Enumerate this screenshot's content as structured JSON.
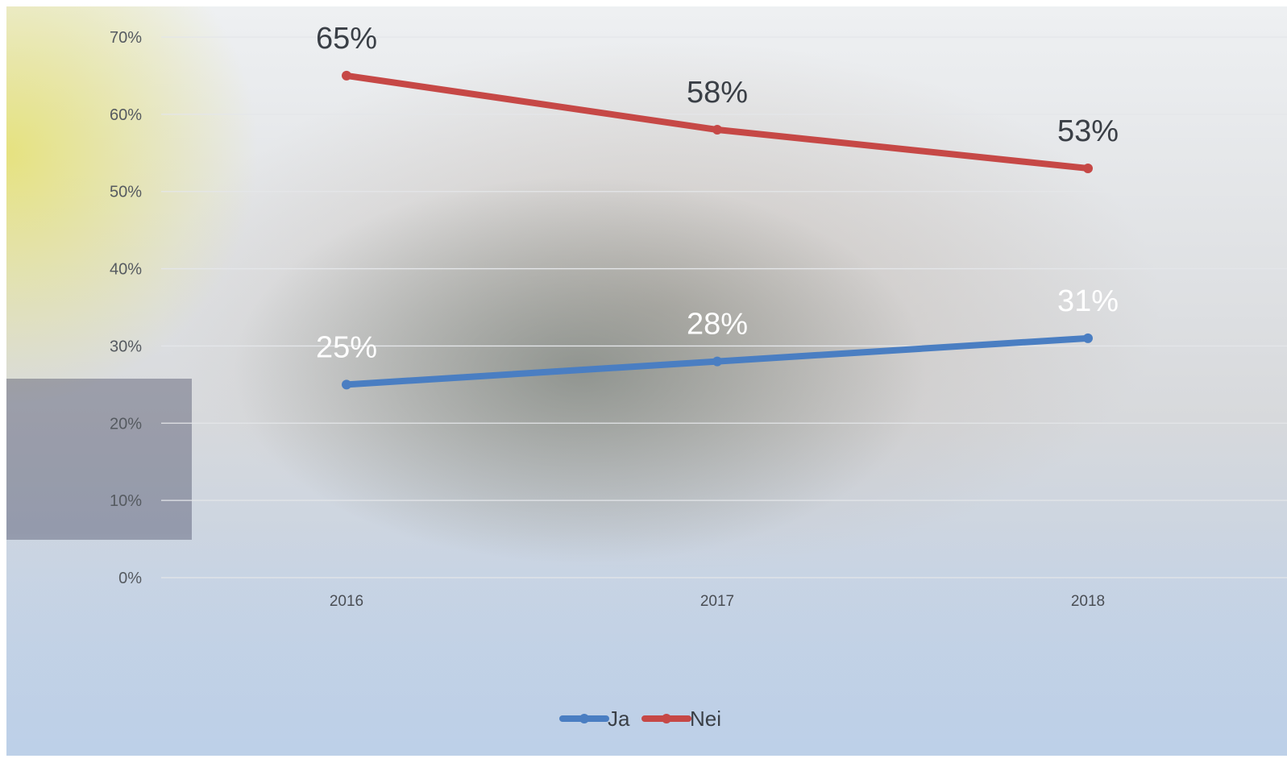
{
  "chart_data": {
    "type": "line",
    "title": "",
    "xlabel": "",
    "ylabel": "",
    "categories": [
      "2016",
      "2017",
      "2018"
    ],
    "ylim": [
      0,
      0.7
    ],
    "yticks": [
      "0%",
      "10%",
      "20%",
      "30%",
      "40%",
      "50%",
      "60%",
      "70%"
    ],
    "grid": true,
    "legend_position": "bottom",
    "series": [
      {
        "name": "Ja",
        "color": "#4a7ec2",
        "values": [
          0.25,
          0.28,
          0.31
        ],
        "labels": [
          "25%",
          "28%",
          "31%"
        ],
        "label_color": "#ffffff"
      },
      {
        "name": "Nei",
        "color": "#c64846",
        "values": [
          0.65,
          0.58,
          0.53
        ],
        "labels": [
          "65%",
          "58%",
          "53%"
        ],
        "label_color": "#3a3f46"
      }
    ]
  }
}
